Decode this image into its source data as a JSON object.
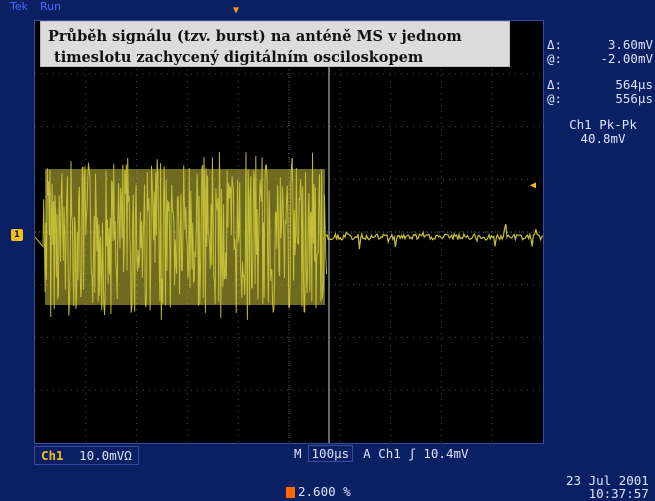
{
  "header": {
    "brand": "Tek",
    "status": "Run",
    "trigger_marker": "▼"
  },
  "caption": {
    "line1": "Průběh signálu (tzv. burst) na anténě MS v jednom",
    "line2": "timeslotu zachycený digitálním osciloskopem"
  },
  "cursors": {
    "volt_delta_label": "Δ:",
    "volt_delta": "3.60mV",
    "volt_at_label": "@:",
    "volt_at": "-2.00mV",
    "time_delta_label": "Δ:",
    "time_delta": "564μs",
    "time_at_label": "@:",
    "time_at": "556μs"
  },
  "measurement": {
    "label": "Ch1 Pk-Pk",
    "value": "40.8mV"
  },
  "channel": {
    "label": "Ch1",
    "scale": "10.0mVΩ",
    "ground_marker": "1"
  },
  "timebase": {
    "m_label": "M",
    "value": "100μs",
    "trigger": "A  Ch1  ʃ  10.4mV"
  },
  "position": {
    "value": "2.600 %"
  },
  "datetime": {
    "date": "23 Jul  2001",
    "time": "10:37:57"
  },
  "colors": {
    "background": "#0a2063",
    "trace": "#c8c23a",
    "grid": "#4c4c4c",
    "text": "#dfe3ff"
  }
}
